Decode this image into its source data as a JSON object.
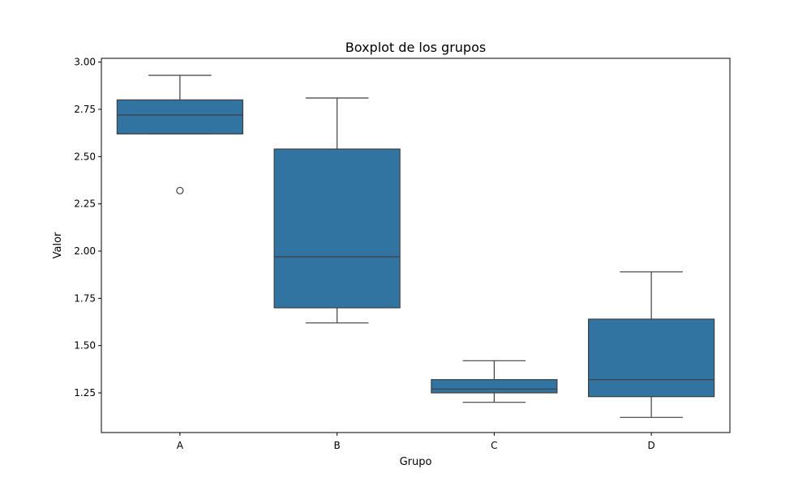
{
  "chart_data": {
    "type": "box",
    "title": "Boxplot de los grupos",
    "xlabel": "Grupo",
    "ylabel": "Valor",
    "categories": [
      "A",
      "B",
      "C",
      "D"
    ],
    "ylim": [
      1.04,
      3.02
    ],
    "yticks": [
      1.25,
      1.5,
      1.75,
      2.0,
      2.25,
      2.5,
      2.75,
      3.0
    ],
    "ytick_labels": [
      "1.25",
      "1.50",
      "1.75",
      "2.00",
      "2.25",
      "2.50",
      "2.75",
      "3.00"
    ],
    "grid": false,
    "box_color": "#3274a1",
    "line_color": "#3f3f3f",
    "boxes": [
      {
        "category": "A",
        "whisker_low": 2.62,
        "q1": 2.62,
        "median": 2.72,
        "q3": 2.8,
        "whisker_high": 2.93,
        "outliers": [
          2.32
        ]
      },
      {
        "category": "B",
        "whisker_low": 1.62,
        "q1": 1.7,
        "median": 1.97,
        "q3": 2.54,
        "whisker_high": 2.81,
        "outliers": []
      },
      {
        "category": "C",
        "whisker_low": 1.2,
        "q1": 1.25,
        "median": 1.27,
        "q3": 1.32,
        "whisker_high": 1.42,
        "outliers": []
      },
      {
        "category": "D",
        "whisker_low": 1.12,
        "q1": 1.23,
        "median": 1.32,
        "q3": 1.64,
        "whisker_high": 1.89,
        "outliers": []
      }
    ]
  }
}
